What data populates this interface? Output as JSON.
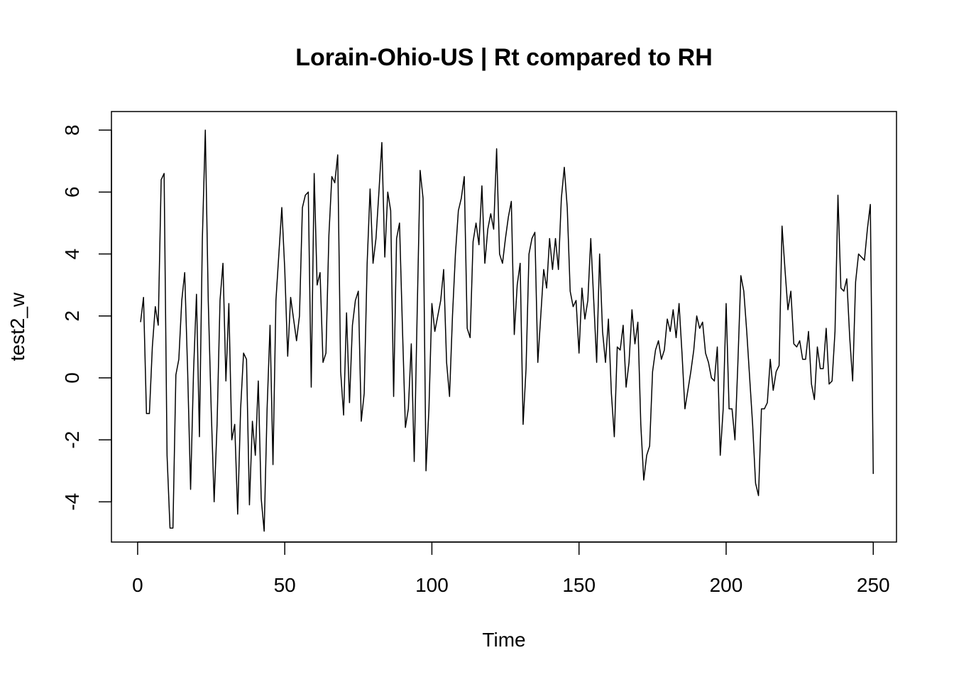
{
  "chart_data": {
    "type": "line",
    "title": "Lorain-Ohio-US | Rt compared to RH",
    "xlabel": "Time",
    "ylabel": "test2_w",
    "xlim": [
      -8.9,
      257.9
    ],
    "ylim": [
      -5.3,
      8.6
    ],
    "x_ticks": [
      0,
      50,
      100,
      150,
      200,
      250
    ],
    "y_ticks": [
      -4,
      -2,
      0,
      2,
      4,
      6,
      8
    ],
    "grid": false,
    "legend": "none",
    "line_color": "#000000",
    "x_start": 1,
    "x_step": 1,
    "values": [
      1.8,
      2.6,
      -1.15,
      -1.15,
      1.0,
      2.3,
      1.7,
      6.4,
      6.6,
      -2.5,
      -4.85,
      -4.85,
      0.1,
      0.6,
      2.5,
      3.4,
      0.2,
      -3.6,
      0.2,
      2.7,
      -1.9,
      4.5,
      8.0,
      2.5,
      -1.0,
      -4.0,
      -1.5,
      2.5,
      3.7,
      -0.1,
      2.4,
      -2.0,
      -1.5,
      -4.4,
      -1.0,
      0.8,
      0.6,
      -4.1,
      -1.4,
      -2.5,
      -0.1,
      -3.9,
      -4.95,
      -1.0,
      1.7,
      -2.8,
      2.5,
      4.0,
      5.5,
      3.5,
      0.7,
      2.6,
      1.9,
      1.2,
      2.0,
      5.5,
      5.9,
      6.0,
      -0.3,
      6.6,
      3.0,
      3.4,
      0.5,
      0.8,
      4.6,
      6.5,
      6.3,
      7.2,
      0.2,
      -1.2,
      2.1,
      -0.8,
      1.7,
      2.5,
      2.8,
      -1.4,
      -0.5,
      3.7,
      6.1,
      3.7,
      4.5,
      6.0,
      7.6,
      3.9,
      6.0,
      5.4,
      -0.6,
      4.5,
      5.0,
      1.6,
      -1.6,
      -1.0,
      1.1,
      -2.7,
      2.1,
      6.7,
      5.8,
      -3.0,
      -1.0,
      2.4,
      1.5,
      2.0,
      2.5,
      3.5,
      0.5,
      -0.6,
      2.0,
      4.0,
      5.4,
      5.8,
      6.5,
      1.6,
      1.3,
      4.4,
      5.0,
      4.3,
      6.2,
      3.7,
      4.8,
      5.3,
      4.8,
      7.4,
      4.0,
      3.7,
      4.5,
      5.2,
      5.7,
      1.4,
      3.0,
      3.7,
      -1.5,
      0.3,
      4.0,
      4.5,
      4.7,
      0.5,
      2.0,
      3.5,
      2.9,
      4.5,
      3.5,
      4.5,
      3.5,
      5.8,
      6.8,
      5.5,
      2.8,
      2.3,
      2.5,
      0.8,
      2.9,
      1.9,
      2.5,
      4.5,
      2.5,
      0.5,
      4.0,
      1.5,
      0.5,
      1.9,
      -0.5,
      -1.9,
      1.0,
      0.9,
      1.7,
      -0.3,
      0.5,
      2.2,
      1.1,
      1.8,
      -1.5,
      -3.3,
      -2.5,
      -2.2,
      0.2,
      0.9,
      1.2,
      0.6,
      0.9,
      1.9,
      1.5,
      2.2,
      1.3,
      2.4,
      0.8,
      -1.0,
      -0.4,
      0.2,
      0.9,
      2.0,
      1.6,
      1.8,
      0.8,
      0.5,
      0.0,
      -0.1,
      1.0,
      -2.5,
      -1.0,
      2.4,
      -1.0,
      -1.0,
      -2.0,
      0.5,
      3.3,
      2.8,
      1.5,
      0.0,
      -1.5,
      -3.4,
      -3.8,
      -1.0,
      -1.0,
      -0.8,
      0.6,
      -0.4,
      0.2,
      0.4,
      4.9,
      3.5,
      2.2,
      2.8,
      1.1,
      1.0,
      1.2,
      0.6,
      0.6,
      1.5,
      -0.2,
      -0.7,
      1.0,
      0.3,
      0.3,
      1.6,
      -0.2,
      -0.1,
      1.5,
      5.9,
      2.9,
      2.8,
      3.2,
      1.3,
      -0.1,
      3.1,
      4.0,
      3.9,
      3.8,
      4.8,
      5.6,
      -3.1
    ]
  }
}
